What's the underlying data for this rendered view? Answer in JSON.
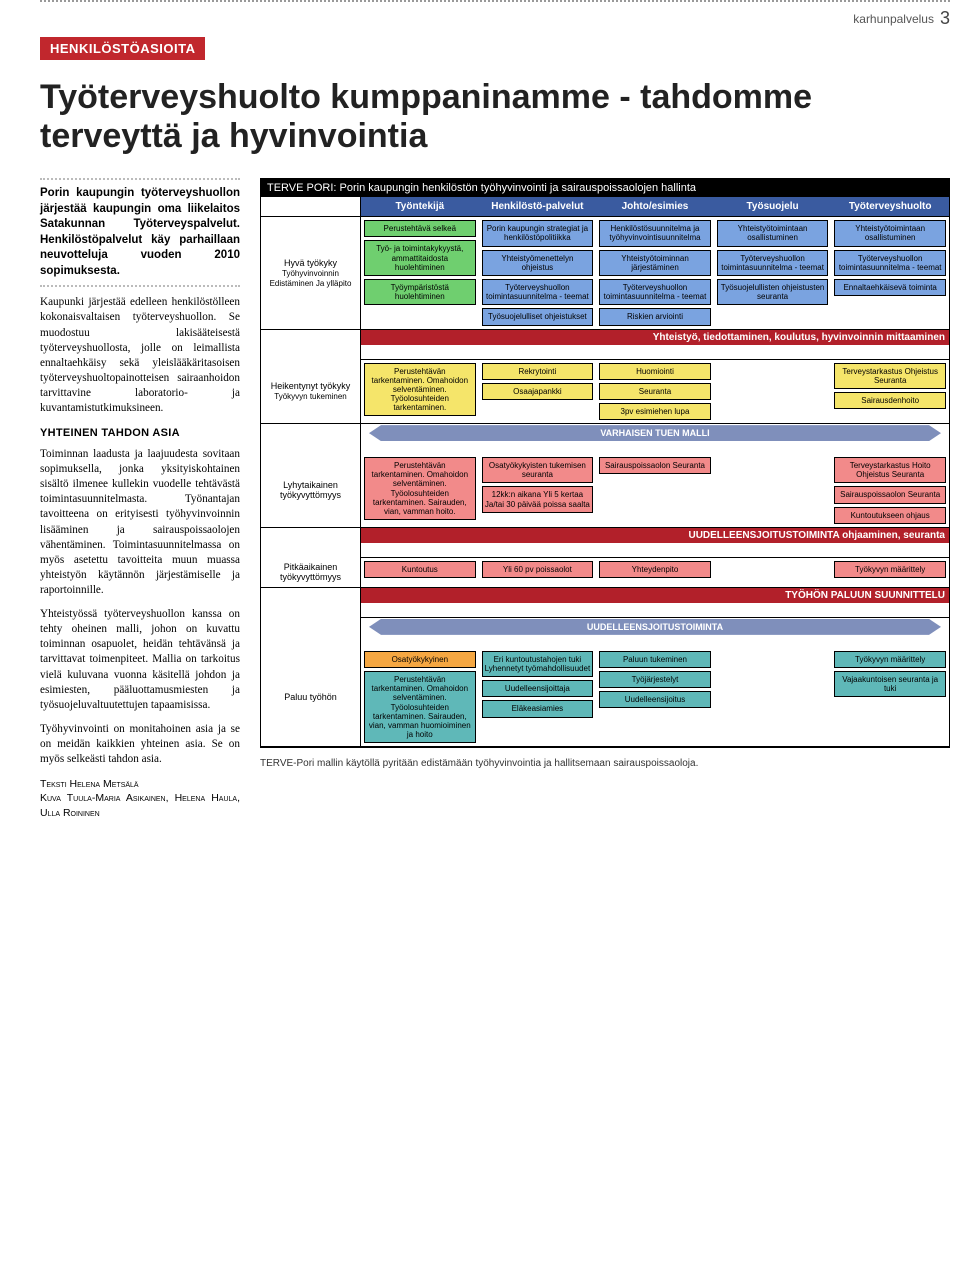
{
  "header": {
    "brand": "karhunpalvelus",
    "page_number": "3"
  },
  "chip": {
    "label": "HENKILÖSTÖASIOITA",
    "bg": "#c1272d"
  },
  "headline": "Työterveyshuolto kumppaninamme - tahdomme terveyttä ja hyvinvointia",
  "lede": "Porin kaupungin työterveyshuollon järjestää kaupungin oma liikelaitos Satakunnan Työterveyspalvelut. Henkilöstöpalvelut käy parhaillaan neuvotteluja vuoden 2010 sopimuksesta.",
  "subhead": "YHTEINEN TAHDON ASIA",
  "paragraphs": [
    "Kaupunki järjestää edelleen henkilöstölleen kokonaisvaltaisen työterveyshuollon. Se muodostuu lakisääteisestä työterveyshuollosta, jolle on leimallista ennaltaehkäisy sekä yleislääkäritasoisen työterveyshuoltopainotteisen sairaanhoidon tarvittavine laboratorio- ja kuvantamistutkimuksineen.",
    "Toiminnan laadusta ja laajuudesta sovitaan sopimuksella, jonka yksityiskohtainen sisältö ilmenee kullekin vuodelle tehtävästä toimintasuunnitelmasta. Työnantajan tavoitteena on erityisesti työhyvinvoinnin lisääminen ja sairauspoissaolojen vähentäminen. Toimintasuunnitelmassa on myös asetettu tavoitteita muun muassa yhteistyön käytännön järjestämiselle ja raportoinnille.",
    "Yhteistyössä työterveyshuollon kanssa on tehty oheinen malli, johon on kuvattu toiminnan osapuolet, heidän tehtävänsä ja tarvittavat toimenpiteet. Mallia on tarkoitus vielä kuluvana vuonna käsitellä johdon ja esimiesten, pääluottamusmiesten ja työsuojeluvaltuutettujen tapaamisissa.",
    "Työhyvinvointi on monitahoinen asia ja se on meidän kaikkien yhteinen asia. Se on myös selkeästi tahdon asia."
  ],
  "byline": "Teksti Helena Metsälä\nKuva Tuula-Maria Asikainen, Helena Haula, Ulla Roininen",
  "caption": "TERVE-Pori mallin käytöllä pyritään edistämään työhyvinvointia ja hallitsemaan sairauspoissaoloja.",
  "diagram": {
    "title": "TERVE PORI: Porin kaupungin henkilöstön työhyvinvointi ja sairauspoissaolojen hallinta",
    "colors": {
      "col_head": "#3a5ba0",
      "band_bar": "#b2202a",
      "arrow": "#7f8fbb",
      "box_green": "#6fcf6f",
      "box_blue": "#7aa3e0",
      "box_yellow": "#f5e56a",
      "box_pink": "#f28a8a",
      "box_orange": "#f5a742",
      "box_teal": "#5fb8b8",
      "box_purple": "#a78fd1"
    },
    "col_headers": [
      "Työntekijä",
      "Henkilöstö-palvelut",
      "Johto/esimies",
      "Työsuojelu",
      "Työterveyshuolto"
    ],
    "left_labels": {
      "r1": "Hyvä työkyky",
      "r1b": "Työhyvinvoinnin Edistäminen Ja ylläpito",
      "r2": "Heikentynyt työkyky",
      "r2b": "Työkyvyn tukeminen",
      "r3": "Lyhytaikainen työkyvyttömyys",
      "r4": "Pitkäaikainen työkyvyttömyys",
      "r5": "Paluu työhön"
    },
    "bands": {
      "yhteistyo": "Yhteistyö, tiedottaminen, koulutus, hyvinvoinnin mittaaminen",
      "varhainen": "VARHAISEN TUEN MALLI",
      "uudelleen1": "UUDELLEENSJOITUSTOIMINTA ohjaaminen, seuranta",
      "paluu": "TYÖHÖN PALUUN SUUNNITTELU",
      "uudelleen2": "UUDELLEENSJOITUSTOIMINTA"
    },
    "cells": {
      "r1": {
        "c1": [
          {
            "t": "Perustehtävä selkeä",
            "c": "box_green"
          },
          {
            "t": "Työ- ja toimintakykyystä, ammattitaidosta huolehtiminen",
            "c": "box_green"
          },
          {
            "t": "Työympäristöstä huolehtiminen",
            "c": "box_green"
          }
        ],
        "c2": [
          {
            "t": "Porin kaupungin strategiat ja henkilöstöpolitiikka",
            "c": "box_blue"
          },
          {
            "t": "Yhteistyömenettelyn ohjeistus",
            "c": "box_blue"
          },
          {
            "t": "Työterveyshuollon toimintasuunnitelma - teemat",
            "c": "box_blue"
          },
          {
            "t": "Työsuojelulliset ohjeistukset",
            "c": "box_blue"
          }
        ],
        "c3": [
          {
            "t": "Henkilöstösuunnitelma ja työhyvinvointisuunnitelma",
            "c": "box_blue"
          },
          {
            "t": "Yhteistyötoiminnan järjestäminen",
            "c": "box_blue"
          },
          {
            "t": "Työterveyshuollon toimintasuunnitelma - teemat",
            "c": "box_blue"
          },
          {
            "t": "Riskien arviointi",
            "c": "box_blue"
          }
        ],
        "c4": [
          {
            "t": "Yhteistyötoimintaan osallistuminen",
            "c": "box_blue"
          },
          {
            "t": "Työterveyshuollon toimintasuunnitelma - teemat",
            "c": "box_blue"
          },
          {
            "t": "Työsuojelullisten ohjeistusten seuranta",
            "c": "box_blue"
          }
        ],
        "c5": [
          {
            "t": "Yhteistyötoimintaan osallistuminen",
            "c": "box_blue"
          },
          {
            "t": "Työterveyshuollon toimintasuunnitelma - teemat",
            "c": "box_blue"
          },
          {
            "t": "Ennaltaehkäisevä toiminta",
            "c": "box_blue"
          }
        ]
      },
      "r2": {
        "c1": [
          {
            "t": "Perustehtävän tarkentaminen. Omahoidon selventäminen. Työolosuhteiden tarkentaminen.",
            "c": "box_yellow"
          }
        ],
        "c2": [
          {
            "t": "Rekrytointi",
            "c": "box_yellow"
          },
          {
            "t": "Osaajapankki",
            "c": "box_yellow"
          }
        ],
        "c3": [
          {
            "t": "Huomiointi",
            "c": "box_yellow"
          },
          {
            "t": "Seuranta",
            "c": "box_yellow"
          },
          {
            "t": "3pv esimiehen lupa",
            "c": "box_yellow"
          }
        ],
        "c4": [],
        "c5": [
          {
            "t": "Terveystarkastus Ohjeistus Seuranta",
            "c": "box_yellow"
          },
          {
            "t": "Sairausdenhoito",
            "c": "box_yellow"
          }
        ]
      },
      "r3": {
        "c1": [
          {
            "t": "Perustehtävän tarkentaminen. Omahoidon selventäminen. Työolosuhteiden tarkentaminen. Sairauden, vian, vamman hoito.",
            "c": "box_pink"
          }
        ],
        "c2": [
          {
            "t": "Osatyökykyisten tukemisen seuranta",
            "c": "box_pink"
          },
          {
            "t": "12kk:n aikana Yli 5 kertaa Ja/tai 30 päivää poissa saalta",
            "c": "box_pink"
          }
        ],
        "c3": [
          {
            "t": "Sairauspoissaolon Seuranta",
            "c": "box_pink"
          }
        ],
        "c4": [],
        "c5": [
          {
            "t": "Terveystarkastus Hoito Ohjeistus Seuranta",
            "c": "box_pink"
          },
          {
            "t": "Sairauspoissaolon Seuranta",
            "c": "box_pink"
          },
          {
            "t": "Kuntoutukseen ohjaus",
            "c": "box_pink"
          }
        ]
      },
      "r4": {
        "c1": [
          {
            "t": "Kuntoutus",
            "c": "box_pink"
          }
        ],
        "c2": [
          {
            "t": "Yli 60 pv poissaolot",
            "c": "box_pink"
          }
        ],
        "c3": [
          {
            "t": "Yhteydenpito",
            "c": "box_pink"
          }
        ],
        "c4": [],
        "c5": [
          {
            "t": "Työkyvyn määrittely",
            "c": "box_pink"
          }
        ]
      },
      "r5": {
        "c1": [
          {
            "t": "Osatyökykyinen",
            "c": "box_orange"
          },
          {
            "t": "Perustehtävän tarkentaminen. Omahoidon selventäminen. Työolosuhteiden tarkentaminen. Sairauden, vian, vamman huomioiminen ja hoito",
            "c": "box_teal"
          }
        ],
        "c2": [
          {
            "t": "Eri kuntoutustahojen tuki Lyhennetyt työmahdollisuudet",
            "c": "box_teal"
          },
          {
            "t": "Uudelleensijoittaja",
            "c": "box_teal"
          },
          {
            "t": "Eläkeasiamies",
            "c": "box_teal"
          }
        ],
        "c3": [
          {
            "t": "Paluun tukeminen",
            "c": "box_teal"
          },
          {
            "t": "Työjärjestelyt",
            "c": "box_teal"
          },
          {
            "t": "Uudelleensijoitus",
            "c": "box_teal"
          }
        ],
        "c4": [],
        "c5": [
          {
            "t": "Työkyvyn määrittely",
            "c": "box_teal"
          },
          {
            "t": "Vajaakuntoisen seuranta ja tuki",
            "c": "box_teal"
          }
        ]
      }
    }
  }
}
